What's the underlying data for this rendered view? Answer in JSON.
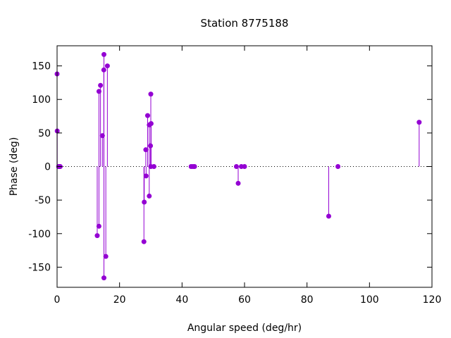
{
  "chart_data": {
    "type": "scatter",
    "style": "impulses-with-points",
    "title": "Station 8775188",
    "xlabel": "Angular speed (deg/hr)",
    "ylabel": "Phase (deg)",
    "xlim": [
      0,
      120
    ],
    "ylim": [
      -180,
      180
    ],
    "xticks": [
      0,
      20,
      40,
      60,
      80,
      100,
      120
    ],
    "yticks": [
      -150,
      -100,
      -50,
      0,
      50,
      100,
      150
    ],
    "zero_line": true,
    "grid": false,
    "series_color": "#9400d3",
    "points": [
      [
        0.0,
        138
      ],
      [
        0.04,
        53
      ],
      [
        0.5,
        0
      ],
      [
        0.6,
        0
      ],
      [
        1.0,
        0
      ],
      [
        12.85,
        -103
      ],
      [
        13.4,
        112
      ],
      [
        13.4,
        -89
      ],
      [
        13.9,
        121
      ],
      [
        14.5,
        46
      ],
      [
        14.96,
        144
      ],
      [
        15.0,
        167
      ],
      [
        15.0,
        -166
      ],
      [
        15.6,
        -134
      ],
      [
        16.1,
        150
      ],
      [
        27.8,
        -112
      ],
      [
        27.9,
        -53
      ],
      [
        28.4,
        25
      ],
      [
        28.5,
        -14
      ],
      [
        28.98,
        76
      ],
      [
        29.5,
        -44
      ],
      [
        29.5,
        62
      ],
      [
        29.9,
        31
      ],
      [
        30.0,
        108
      ],
      [
        30.0,
        0
      ],
      [
        30.1,
        64
      ],
      [
        31.0,
        0
      ],
      [
        42.9,
        0
      ],
      [
        43.5,
        0
      ],
      [
        44.0,
        0
      ],
      [
        57.4,
        0
      ],
      [
        57.97,
        -25
      ],
      [
        58.98,
        0
      ],
      [
        60.0,
        0
      ],
      [
        86.95,
        -74
      ],
      [
        89.9,
        0
      ],
      [
        115.9,
        66
      ]
    ]
  }
}
